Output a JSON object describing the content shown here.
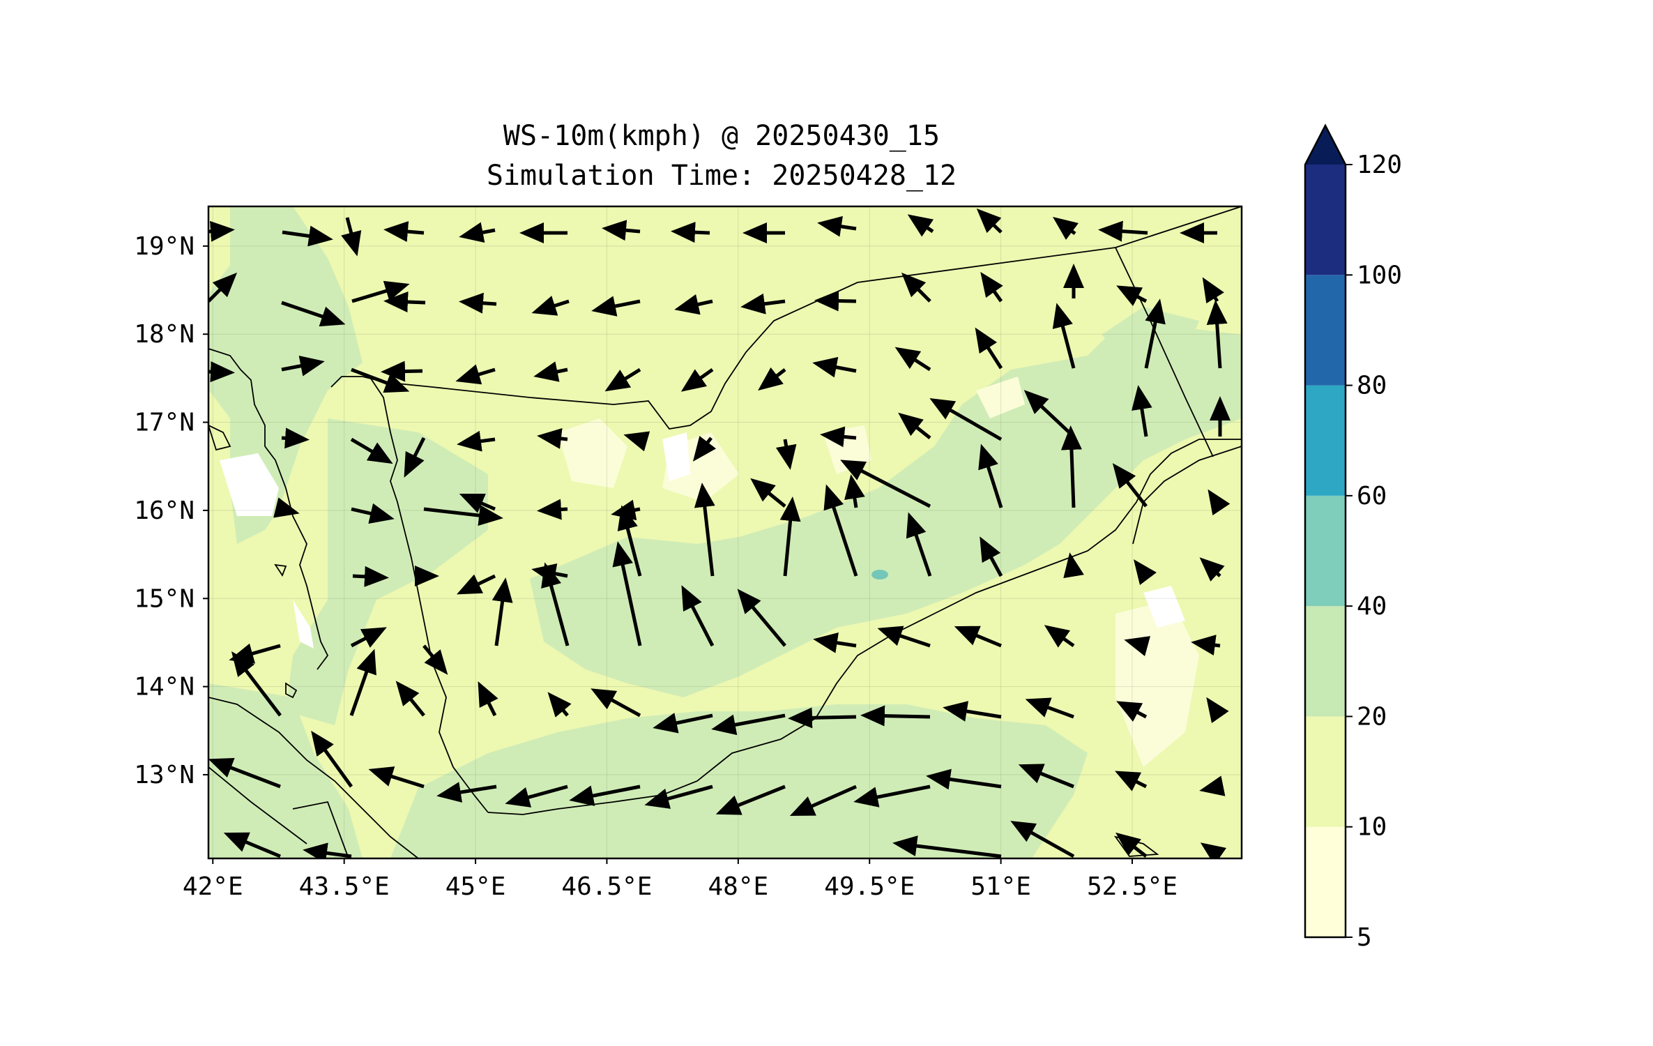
{
  "title": {
    "line1": "WS-10m(kmph) @ 20250430_15",
    "line2": "Simulation Time: 20250428_12"
  },
  "map": {
    "lon_range": [
      41.95,
      53.75
    ],
    "lat_range": [
      12.05,
      19.45
    ],
    "x_ticks": [
      "42°E",
      "43.5°E",
      "45°E",
      "46.5°E",
      "48°E",
      "49.5°E",
      "51°E",
      "52.5°E"
    ],
    "x_tick_values": [
      42,
      43.5,
      45,
      46.5,
      48,
      49.5,
      51,
      52.5
    ],
    "y_ticks": [
      "19°N",
      "18°N",
      "17°N",
      "16°N",
      "15°N",
      "14°N",
      "13°N"
    ],
    "y_tick_values": [
      19,
      18,
      17,
      16,
      15,
      14,
      13
    ],
    "base_fill_color": "#edf8b1",
    "grid": true
  },
  "colorbar": {
    "levels": [
      "120",
      "100",
      "80",
      "60",
      "40",
      "20",
      "10",
      "5"
    ],
    "level_values": [
      120,
      100,
      80,
      60,
      40,
      20,
      10,
      5
    ],
    "colors": [
      "#ffffd9",
      "#edf8b1",
      "#c7e9b4",
      "#7fcdbb",
      "#2ea7c4",
      "#2367ab",
      "#1c2d80",
      "#081d58"
    ],
    "extend": "max"
  }
}
